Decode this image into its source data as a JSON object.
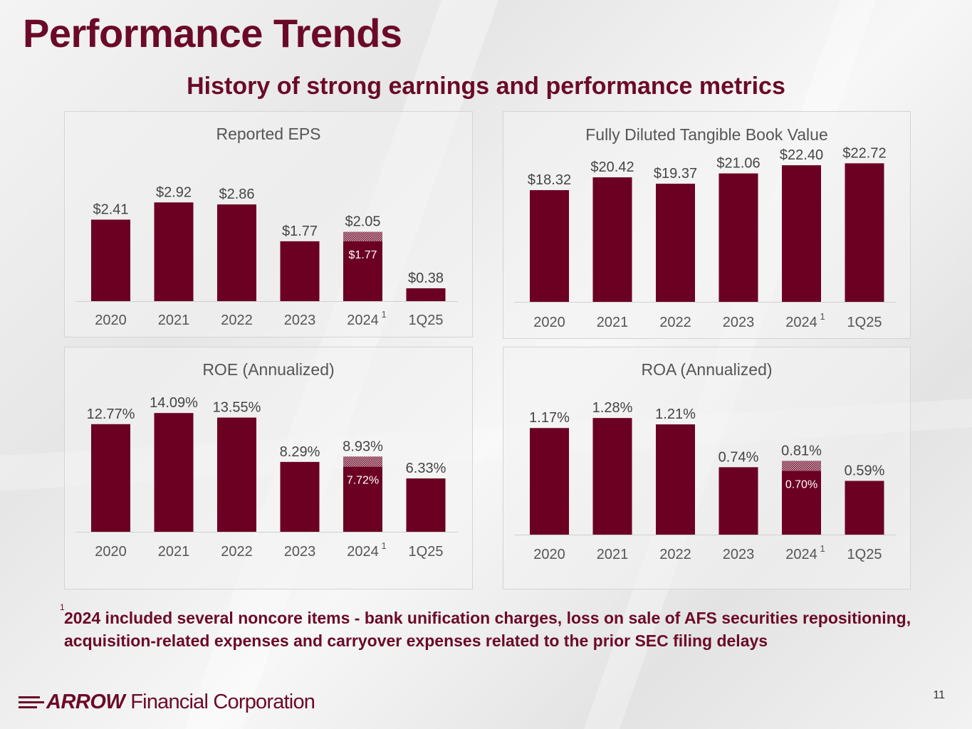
{
  "header": {
    "title": "Performance Trends",
    "subtitle": "History of strong earnings and performance metrics"
  },
  "colors": {
    "bar": "#6b0023",
    "brand": "#6b0a28",
    "hatch": "#d8c3c9"
  },
  "chart_data": [
    {
      "type": "bar",
      "title": "Reported EPS",
      "categories": [
        "2020",
        "2021",
        "2022",
        "2023",
        "2024",
        "1Q25"
      ],
      "category_superscripts": [
        "",
        "",
        "",
        "",
        "1",
        ""
      ],
      "values": [
        2.41,
        2.92,
        2.86,
        1.77,
        2.05,
        0.38
      ],
      "value_labels": [
        "$2.41",
        "$2.92",
        "$2.86",
        "$1.77",
        "$2.05",
        "$0.38"
      ],
      "solid_values": [
        null,
        null,
        null,
        null,
        1.77,
        null
      ],
      "solid_labels": [
        null,
        null,
        null,
        null,
        "$1.77",
        null
      ],
      "ylim": [
        0,
        3.6
      ]
    },
    {
      "type": "bar",
      "title": "Fully Diluted Tangible Book Value",
      "categories": [
        "2020",
        "2021",
        "2022",
        "2023",
        "2024",
        "1Q25"
      ],
      "category_superscripts": [
        "",
        "",
        "",
        "",
        "1",
        ""
      ],
      "values": [
        18.32,
        20.42,
        19.37,
        21.06,
        22.4,
        22.72
      ],
      "value_labels": [
        "$18.32",
        "$20.42",
        "$19.37",
        "$21.06",
        "$22.40",
        "$22.72"
      ],
      "solid_values": [
        null,
        null,
        null,
        null,
        null,
        null
      ],
      "solid_labels": [
        null,
        null,
        null,
        null,
        null,
        null
      ],
      "ylim": [
        0,
        26.5
      ]
    },
    {
      "type": "bar",
      "title": "ROE (Annualized)",
      "categories": [
        "2020",
        "2021",
        "2022",
        "2023",
        "2024",
        "1Q25"
      ],
      "category_superscripts": [
        "",
        "",
        "",
        "",
        "1",
        ""
      ],
      "values": [
        12.77,
        14.09,
        13.55,
        8.29,
        8.93,
        6.33
      ],
      "value_labels": [
        "12.77%",
        "14.09%",
        "13.55%",
        "8.29%",
        "8.93%",
        "6.33%"
      ],
      "solid_values": [
        null,
        null,
        null,
        null,
        7.72,
        null
      ],
      "solid_labels": [
        null,
        null,
        null,
        null,
        "7.72%",
        null
      ],
      "ylim": [
        0,
        16.3
      ]
    },
    {
      "type": "bar",
      "title": "ROA (Annualized)",
      "categories": [
        "2020",
        "2021",
        "2022",
        "2023",
        "2024",
        "1Q25"
      ],
      "category_superscripts": [
        "",
        "",
        "",
        "",
        "1",
        ""
      ],
      "values": [
        1.17,
        1.28,
        1.21,
        0.74,
        0.81,
        0.59
      ],
      "value_labels": [
        "1.17%",
        "1.28%",
        "1.21%",
        "0.74%",
        "0.81%",
        "0.59%"
      ],
      "solid_values": [
        null,
        null,
        null,
        null,
        0.7,
        null
      ],
      "solid_labels": [
        null,
        null,
        null,
        null,
        "0.70%",
        null
      ],
      "ylim": [
        0,
        1.5
      ]
    }
  ],
  "footnote": {
    "marker": "1",
    "text": "2024 included several noncore items - bank unification charges, loss on sale of AFS securities repositioning, acquisition-related expenses and carryover expenses related to the prior SEC filing delays"
  },
  "footer": {
    "logo_brand": "ARROW",
    "logo_text": "Financial Corporation",
    "page_number": "11"
  }
}
